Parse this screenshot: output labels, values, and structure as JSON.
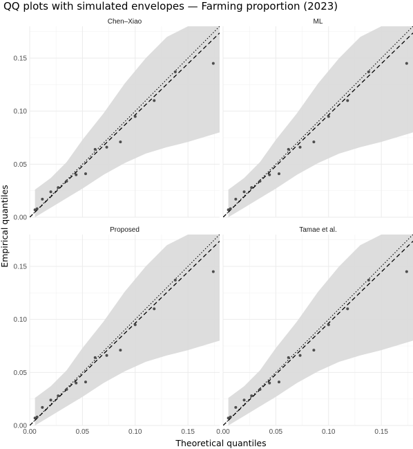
{
  "chart_data": {
    "type": "scatter",
    "title": "QQ plots with simulated envelopes — Farming proportion (2023)",
    "xlabel": "Theoretical quantiles",
    "ylabel": "Empirical quantiles",
    "xlim": [
      0.0,
      0.18
    ],
    "ylim": [
      0.0,
      0.18
    ],
    "x_ticks": [
      0.0,
      0.05,
      0.1,
      0.15
    ],
    "x_tick_labels": [
      "0.00",
      "0.05",
      "0.10",
      "0.15"
    ],
    "y_ticks": [
      0.0,
      0.05,
      0.1,
      0.15
    ],
    "y_tick_labels": [
      "0.00",
      "0.05",
      "0.10",
      "0.15"
    ],
    "grid": true,
    "legend": "none",
    "reference_line": {
      "style": "dotted",
      "slope": 1,
      "intercept": 0
    },
    "fit_line": {
      "style": "dashed",
      "slope": 0.965,
      "intercept": 0.0
    },
    "envelope_color": "#d9d9d9",
    "panels": [
      {
        "name": "Chen–Xiao",
        "points": [
          {
            "x": 0.005,
            "y": 0.007
          },
          {
            "x": 0.007,
            "y": 0.008
          },
          {
            "x": 0.012,
            "y": 0.017
          },
          {
            "x": 0.02,
            "y": 0.024
          },
          {
            "x": 0.027,
            "y": 0.028
          },
          {
            "x": 0.035,
            "y": 0.034
          },
          {
            "x": 0.044,
            "y": 0.04
          },
          {
            "x": 0.053,
            "y": 0.041
          },
          {
            "x": 0.062,
            "y": 0.064
          },
          {
            "x": 0.073,
            "y": 0.066
          },
          {
            "x": 0.086,
            "y": 0.071
          },
          {
            "x": 0.1,
            "y": 0.095
          },
          {
            "x": 0.118,
            "y": 0.11
          },
          {
            "x": 0.138,
            "y": 0.137
          },
          {
            "x": 0.174,
            "y": 0.145
          }
        ],
        "envelope": [
          {
            "x": 0.005,
            "lo": 0.0,
            "hi": 0.026
          },
          {
            "x": 0.02,
            "lo": 0.009,
            "hi": 0.037
          },
          {
            "x": 0.035,
            "lo": 0.018,
            "hi": 0.052
          },
          {
            "x": 0.05,
            "lo": 0.027,
            "hi": 0.073
          },
          {
            "x": 0.07,
            "lo": 0.04,
            "hi": 0.098
          },
          {
            "x": 0.09,
            "lo": 0.051,
            "hi": 0.126
          },
          {
            "x": 0.11,
            "lo": 0.06,
            "hi": 0.15
          },
          {
            "x": 0.13,
            "lo": 0.066,
            "hi": 0.17
          },
          {
            "x": 0.15,
            "lo": 0.071,
            "hi": 0.18
          },
          {
            "x": 0.18,
            "lo": 0.08,
            "hi": 0.18
          }
        ]
      },
      {
        "name": "ML",
        "points": [
          {
            "x": 0.005,
            "y": 0.007
          },
          {
            "x": 0.007,
            "y": 0.008
          },
          {
            "x": 0.012,
            "y": 0.017
          },
          {
            "x": 0.02,
            "y": 0.024
          },
          {
            "x": 0.027,
            "y": 0.028
          },
          {
            "x": 0.035,
            "y": 0.034
          },
          {
            "x": 0.044,
            "y": 0.04
          },
          {
            "x": 0.053,
            "y": 0.041
          },
          {
            "x": 0.062,
            "y": 0.064
          },
          {
            "x": 0.073,
            "y": 0.066
          },
          {
            "x": 0.086,
            "y": 0.071
          },
          {
            "x": 0.1,
            "y": 0.095
          },
          {
            "x": 0.118,
            "y": 0.11
          },
          {
            "x": 0.138,
            "y": 0.137
          },
          {
            "x": 0.174,
            "y": 0.145
          }
        ],
        "envelope": [
          {
            "x": 0.005,
            "lo": 0.0,
            "hi": 0.026
          },
          {
            "x": 0.02,
            "lo": 0.009,
            "hi": 0.037
          },
          {
            "x": 0.035,
            "lo": 0.018,
            "hi": 0.052
          },
          {
            "x": 0.05,
            "lo": 0.027,
            "hi": 0.073
          },
          {
            "x": 0.07,
            "lo": 0.04,
            "hi": 0.098
          },
          {
            "x": 0.09,
            "lo": 0.051,
            "hi": 0.126
          },
          {
            "x": 0.11,
            "lo": 0.06,
            "hi": 0.15
          },
          {
            "x": 0.13,
            "lo": 0.066,
            "hi": 0.17
          },
          {
            "x": 0.15,
            "lo": 0.071,
            "hi": 0.18
          },
          {
            "x": 0.18,
            "lo": 0.08,
            "hi": 0.18
          }
        ]
      },
      {
        "name": "Proposed",
        "points": [
          {
            "x": 0.005,
            "y": 0.007
          },
          {
            "x": 0.007,
            "y": 0.008
          },
          {
            "x": 0.012,
            "y": 0.017
          },
          {
            "x": 0.02,
            "y": 0.024
          },
          {
            "x": 0.027,
            "y": 0.028
          },
          {
            "x": 0.035,
            "y": 0.034
          },
          {
            "x": 0.044,
            "y": 0.04
          },
          {
            "x": 0.053,
            "y": 0.041
          },
          {
            "x": 0.062,
            "y": 0.064
          },
          {
            "x": 0.073,
            "y": 0.066
          },
          {
            "x": 0.086,
            "y": 0.071
          },
          {
            "x": 0.1,
            "y": 0.095
          },
          {
            "x": 0.118,
            "y": 0.11
          },
          {
            "x": 0.138,
            "y": 0.137
          },
          {
            "x": 0.174,
            "y": 0.145
          }
        ],
        "envelope": [
          {
            "x": 0.005,
            "lo": 0.0,
            "hi": 0.026
          },
          {
            "x": 0.02,
            "lo": 0.009,
            "hi": 0.037
          },
          {
            "x": 0.035,
            "lo": 0.018,
            "hi": 0.052
          },
          {
            "x": 0.05,
            "lo": 0.027,
            "hi": 0.073
          },
          {
            "x": 0.07,
            "lo": 0.04,
            "hi": 0.098
          },
          {
            "x": 0.09,
            "lo": 0.051,
            "hi": 0.126
          },
          {
            "x": 0.11,
            "lo": 0.06,
            "hi": 0.15
          },
          {
            "x": 0.13,
            "lo": 0.066,
            "hi": 0.17
          },
          {
            "x": 0.15,
            "lo": 0.071,
            "hi": 0.18
          },
          {
            "x": 0.18,
            "lo": 0.08,
            "hi": 0.18
          }
        ]
      },
      {
        "name": "Tamae et al.",
        "points": [
          {
            "x": 0.005,
            "y": 0.007
          },
          {
            "x": 0.007,
            "y": 0.008
          },
          {
            "x": 0.012,
            "y": 0.017
          },
          {
            "x": 0.02,
            "y": 0.024
          },
          {
            "x": 0.027,
            "y": 0.028
          },
          {
            "x": 0.035,
            "y": 0.034
          },
          {
            "x": 0.044,
            "y": 0.04
          },
          {
            "x": 0.053,
            "y": 0.041
          },
          {
            "x": 0.062,
            "y": 0.064
          },
          {
            "x": 0.073,
            "y": 0.066
          },
          {
            "x": 0.086,
            "y": 0.071
          },
          {
            "x": 0.1,
            "y": 0.095
          },
          {
            "x": 0.118,
            "y": 0.11
          },
          {
            "x": 0.138,
            "y": 0.137
          },
          {
            "x": 0.174,
            "y": 0.145
          }
        ],
        "envelope": [
          {
            "x": 0.005,
            "lo": 0.0,
            "hi": 0.026
          },
          {
            "x": 0.02,
            "lo": 0.009,
            "hi": 0.037
          },
          {
            "x": 0.035,
            "lo": 0.018,
            "hi": 0.052
          },
          {
            "x": 0.05,
            "lo": 0.027,
            "hi": 0.073
          },
          {
            "x": 0.07,
            "lo": 0.04,
            "hi": 0.098
          },
          {
            "x": 0.09,
            "lo": 0.051,
            "hi": 0.126
          },
          {
            "x": 0.11,
            "lo": 0.06,
            "hi": 0.15
          },
          {
            "x": 0.13,
            "lo": 0.066,
            "hi": 0.17
          },
          {
            "x": 0.15,
            "lo": 0.071,
            "hi": 0.18
          },
          {
            "x": 0.18,
            "lo": 0.08,
            "hi": 0.18
          }
        ]
      }
    ]
  }
}
